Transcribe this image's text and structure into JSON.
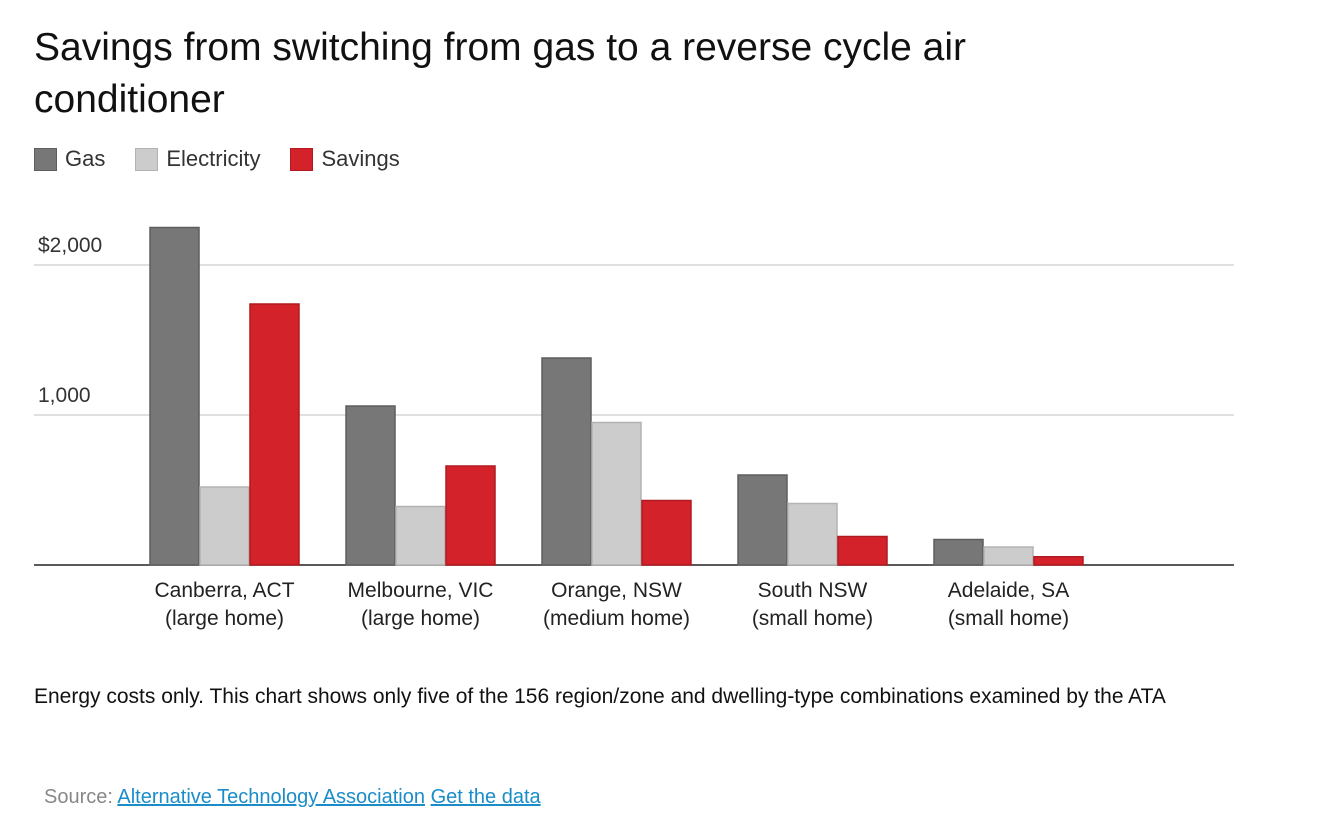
{
  "chart_data": {
    "type": "bar",
    "title": "Savings from switching from gas to a reverse cycle air conditioner",
    "categories": [
      [
        "Canberra, ACT",
        "(large home)"
      ],
      [
        "Melbourne, VIC",
        "(large home)"
      ],
      [
        "Orange, NSW",
        "(medium home)"
      ],
      [
        "South NSW",
        "(small home)"
      ],
      [
        "Adelaide, SA",
        "(small home)"
      ]
    ],
    "series": [
      {
        "name": "Gas",
        "color": "#777777",
        "stroke": "#5e5e5e",
        "values": [
          2250,
          1060,
          1380,
          600,
          170
        ]
      },
      {
        "name": "Electricity",
        "color": "#cccccc",
        "stroke": "#b3b3b3",
        "values": [
          520,
          390,
          950,
          410,
          120
        ]
      },
      {
        "name": "Savings",
        "color": "#d4222a",
        "stroke": "#b01a20",
        "values": [
          1740,
          660,
          430,
          190,
          55
        ]
      }
    ],
    "y_ticks": [
      {
        "value": 1000,
        "label": "1,000"
      },
      {
        "value": 2000,
        "label": "$2,000"
      }
    ],
    "ylim": [
      0,
      2300
    ],
    "xlabel": "",
    "ylabel": "",
    "grid": true,
    "legend_position": "top-left"
  },
  "note": "Energy costs only. This chart shows only five of the 156 region/zone and dwelling-type combinations examined by the ATA",
  "source": {
    "label": "Source:",
    "link_text": "Alternative Technology Association",
    "data_link_text": "Get the data"
  }
}
